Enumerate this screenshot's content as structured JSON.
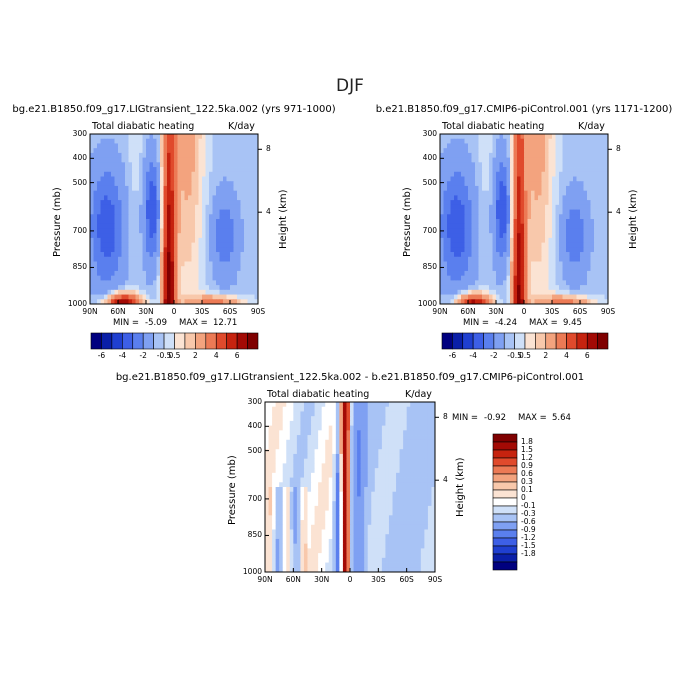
{
  "page_title": "DJF",
  "chart_data": [
    {
      "type": "heatmap",
      "id": "lig",
      "case_title": "bg.e21.B1850.f09_g17.LIGtransient_122.5ka.002 (yrs 971-1000)",
      "variable": "Total diabatic heating",
      "units": "K/day",
      "ylabel": "Pressure (mb)",
      "y2label": "Height (km)",
      "x_ticks": [
        "90N",
        "60N",
        "30N",
        "0",
        "30S",
        "60S",
        "90S"
      ],
      "y_ticks": [
        "300",
        "400",
        "500",
        "700",
        "850",
        "1000"
      ],
      "y2_ticks": [
        "8",
        "4"
      ],
      "min_label": "MIN =",
      "min_value": "-5.09",
      "max_label": "MAX =",
      "max_value": "12.71",
      "colorbar_labels": [
        "-6",
        "-4",
        "-2",
        "-0.5",
        "0.5",
        "2",
        "4",
        "6"
      ],
      "colorbar_levels": [
        -6,
        -5,
        -4,
        -3,
        -2,
        -1,
        -0.5,
        0,
        0.5,
        1,
        2,
        3,
        4,
        5,
        6
      ],
      "colorbar_colors": [
        "#00007f",
        "#0a1fa8",
        "#1f3fd0",
        "#3d5fe6",
        "#5a7fee",
        "#7fa0f2",
        "#a8c3f5",
        "#cfe0f8",
        "#fbe3d3",
        "#f8c8ab",
        "#f3a37e",
        "#ec7a55",
        "#e04a2c",
        "#c6230f",
        "#a30a05",
        "#7f0000"
      ]
    },
    {
      "type": "heatmap",
      "id": "pi",
      "case_title": "b.e21.B1850.f09_g17.CMIP6-piControl.001 (yrs 1171-1200)",
      "variable": "Total diabatic heating",
      "units": "K/day",
      "ylabel": "Pressure (mb)",
      "y2label": "Height (km)",
      "x_ticks": [
        "90N",
        "60N",
        "30N",
        "0",
        "30S",
        "60S",
        "90S"
      ],
      "y_ticks": [
        "300",
        "400",
        "500",
        "700",
        "850",
        "1000"
      ],
      "y2_ticks": [
        "8",
        "4"
      ],
      "min_label": "MIN =",
      "min_value": "-4.24",
      "max_label": "MAX =",
      "max_value": "9.45",
      "colorbar_labels": [
        "-6",
        "-4",
        "-2",
        "-0.5",
        "0.5",
        "2",
        "4",
        "6"
      ]
    },
    {
      "type": "heatmap",
      "id": "diff",
      "case_title": "bg.e21.B1850.f09_g17.LIGtransient_122.5ka.002 - b.e21.B1850.f09_g17.CMIP6-piControl.001",
      "variable": "Total diabatic heating",
      "units": "K/day",
      "ylabel": "Pressure (mb)",
      "y2label": "Height (km)",
      "x_ticks": [
        "90N",
        "60N",
        "30N",
        "0",
        "30S",
        "60S",
        "90S"
      ],
      "y_ticks": [
        "300",
        "400",
        "500",
        "700",
        "850",
        "1000"
      ],
      "y2_ticks": [
        "8",
        "4"
      ],
      "min_label": "MIN =",
      "min_value": "-0.92",
      "max_label": "MAX =",
      "max_value": "5.64",
      "colorbar_labels": [
        "1.8",
        "1.5",
        "1.2",
        "0.9",
        "0.6",
        "0.3",
        "0.1",
        "0",
        "-0.1",
        "-0.3",
        "-0.6",
        "-0.9",
        "-1.2",
        "-1.5",
        "-1.8"
      ],
      "colorbar_colors": [
        "#7f0000",
        "#a30a05",
        "#c6230f",
        "#e04a2c",
        "#ec7a55",
        "#f3a37e",
        "#f8c8ab",
        "#fbe3d3",
        "#ffffff",
        "#cfe0f8",
        "#a8c3f5",
        "#7fa0f2",
        "#5a7fee",
        "#3d5fe6",
        "#1f3fd0",
        "#0a1fa8",
        "#00007f"
      ]
    }
  ]
}
